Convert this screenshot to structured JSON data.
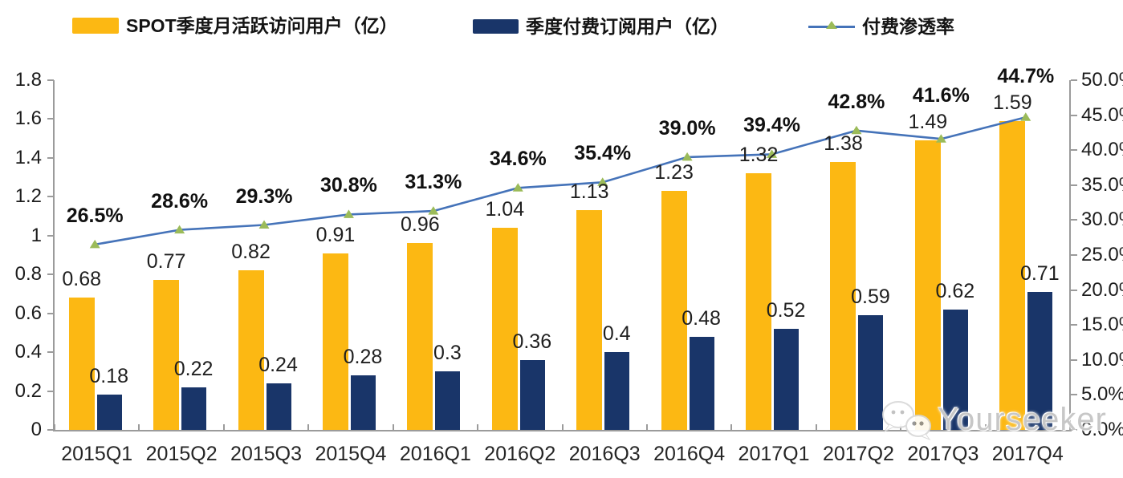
{
  "legend": {
    "items": [
      {
        "label": "SPOT季度月活跃访问用户（亿）",
        "type": "bar",
        "color": "#FCB813"
      },
      {
        "label": "季度付费订阅用户（亿）",
        "type": "bar",
        "color": "#193569"
      },
      {
        "label": "付费渗透率",
        "type": "line",
        "color": "#4573B9",
        "marker_color": "#9BBB59"
      }
    ]
  },
  "chart_data": {
    "type": "bar+line",
    "categories": [
      "2015Q1",
      "2015Q2",
      "2015Q3",
      "2015Q4",
      "2016Q1",
      "2016Q2",
      "2016Q3",
      "2016Q4",
      "2017Q1",
      "2017Q2",
      "2017Q3",
      "2017Q4"
    ],
    "series": [
      {
        "name": "SPOT季度月活跃访问用户（亿）",
        "type": "bar",
        "axis": "left",
        "color": "#FCB813",
        "values": [
          0.68,
          0.77,
          0.82,
          0.91,
          0.96,
          1.04,
          1.13,
          1.23,
          1.32,
          1.38,
          1.49,
          1.59
        ],
        "labels": [
          "0.68",
          "0.77",
          "0.82",
          "0.91",
          "0.96",
          "1.04",
          "1.13",
          "1.23",
          "1.32",
          "1.38",
          "1.49",
          "1.59"
        ]
      },
      {
        "name": "季度付费订阅用户（亿）",
        "type": "bar",
        "axis": "left",
        "color": "#193569",
        "values": [
          0.18,
          0.22,
          0.24,
          0.28,
          0.3,
          0.36,
          0.4,
          0.48,
          0.52,
          0.59,
          0.62,
          0.71
        ],
        "labels": [
          "0.18",
          "0.22",
          "0.24",
          "0.28",
          "0.3",
          "0.36",
          "0.4",
          "0.48",
          "0.52",
          "0.59",
          "0.62",
          "0.71"
        ]
      },
      {
        "name": "付费渗透率",
        "type": "line",
        "axis": "right",
        "color": "#4573B9",
        "marker": "triangle-up",
        "marker_color": "#9BBB59",
        "values": [
          26.5,
          28.6,
          29.3,
          30.8,
          31.3,
          34.6,
          35.4,
          39.0,
          39.4,
          42.8,
          41.6,
          44.7
        ],
        "labels": [
          "26.5%",
          "28.6%",
          "29.3%",
          "30.8%",
          "31.3%",
          "34.6%",
          "35.4%",
          "39.0%",
          "39.4%",
          "42.8%",
          "41.6%",
          "44.7%"
        ]
      }
    ],
    "left_axis": {
      "min": 0,
      "max": 1.8,
      "ticks": [
        "0",
        "0.2",
        "0.4",
        "0.6",
        "0.8",
        "1",
        "1.2",
        "1.4",
        "1.6",
        "1.8"
      ]
    },
    "right_axis": {
      "min": 0,
      "max": 50,
      "unit": "%",
      "ticks": [
        "0.0%",
        "5.0%",
        "10.0%",
        "15.0%",
        "20.0%",
        "25.0%",
        "30.0%",
        "35.0%",
        "40.0%",
        "45.0%",
        "50.0%"
      ]
    },
    "grid": false,
    "legend_position": "top",
    "background": "#FFFFFF",
    "axis_color": "#9B9B9B"
  },
  "watermark": {
    "text": "Yourseeker",
    "icon": "wechat-icon"
  }
}
